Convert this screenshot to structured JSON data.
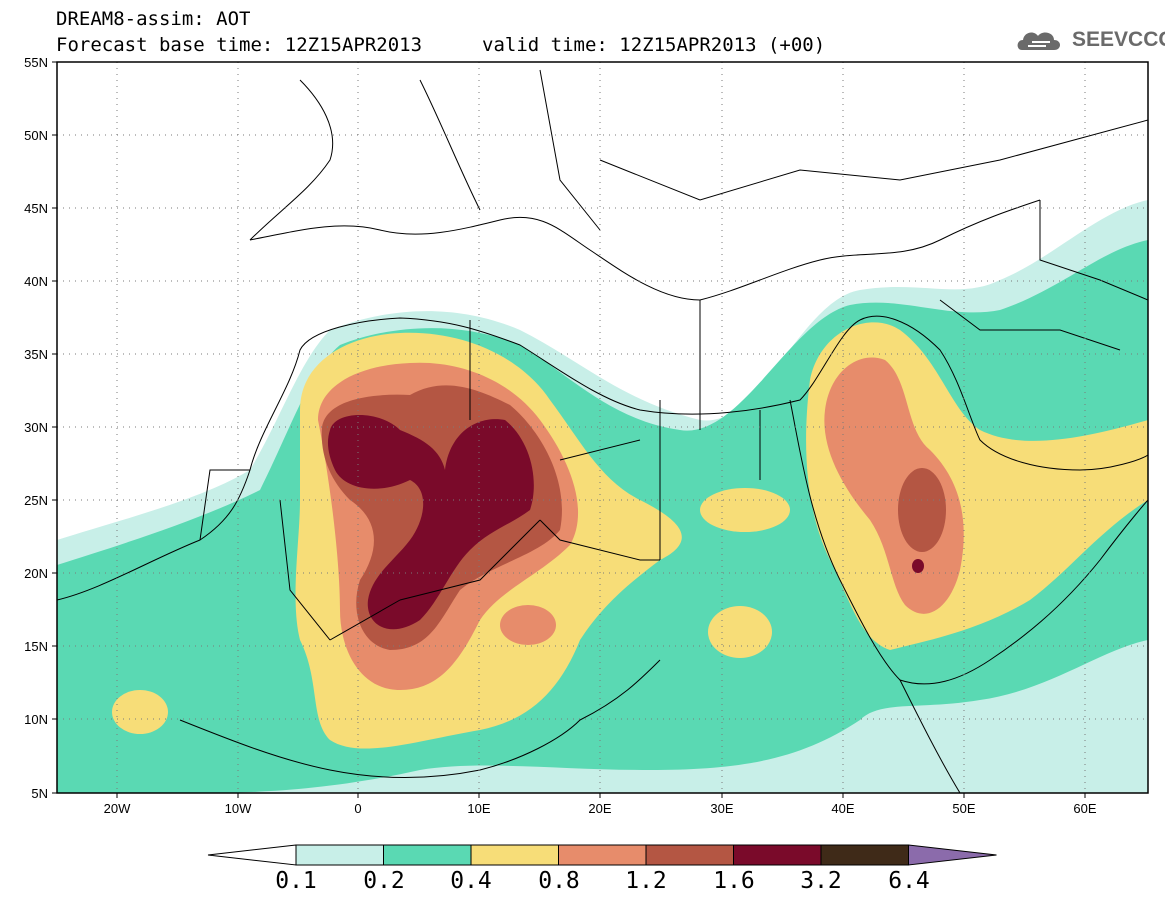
{
  "header": {
    "title_line1": "DREAM8-assim: AOT",
    "title_line2": "Forecast base time: 12Z15APR2013",
    "valid_time": "valid time: 12Z15APR2013 (+00)",
    "logo_text": "SEEVCCC"
  },
  "map": {
    "lat_labels": [
      "55N",
      "50N",
      "45N",
      "40N",
      "35N",
      "30N",
      "25N",
      "20N",
      "15N",
      "10N",
      "5N"
    ],
    "lon_labels": [
      "20W",
      "10W",
      "0",
      "10E",
      "20E",
      "30E",
      "40E",
      "50E",
      "60E"
    ],
    "extent": {
      "lon": [
        -25,
        65
      ],
      "lat": [
        5,
        55
      ]
    }
  },
  "legend": {
    "labels": [
      "0.1",
      "0.2",
      "0.4",
      "0.8",
      "1.2",
      "1.6",
      "3.2",
      "6.4"
    ],
    "colors": [
      "#ffffff",
      "#c8efe8",
      "#5ad9b3",
      "#f7dd78",
      "#e78c6b",
      "#b45643",
      "#7a0a2a",
      "#3f2a18",
      "#8b6bab"
    ]
  }
}
